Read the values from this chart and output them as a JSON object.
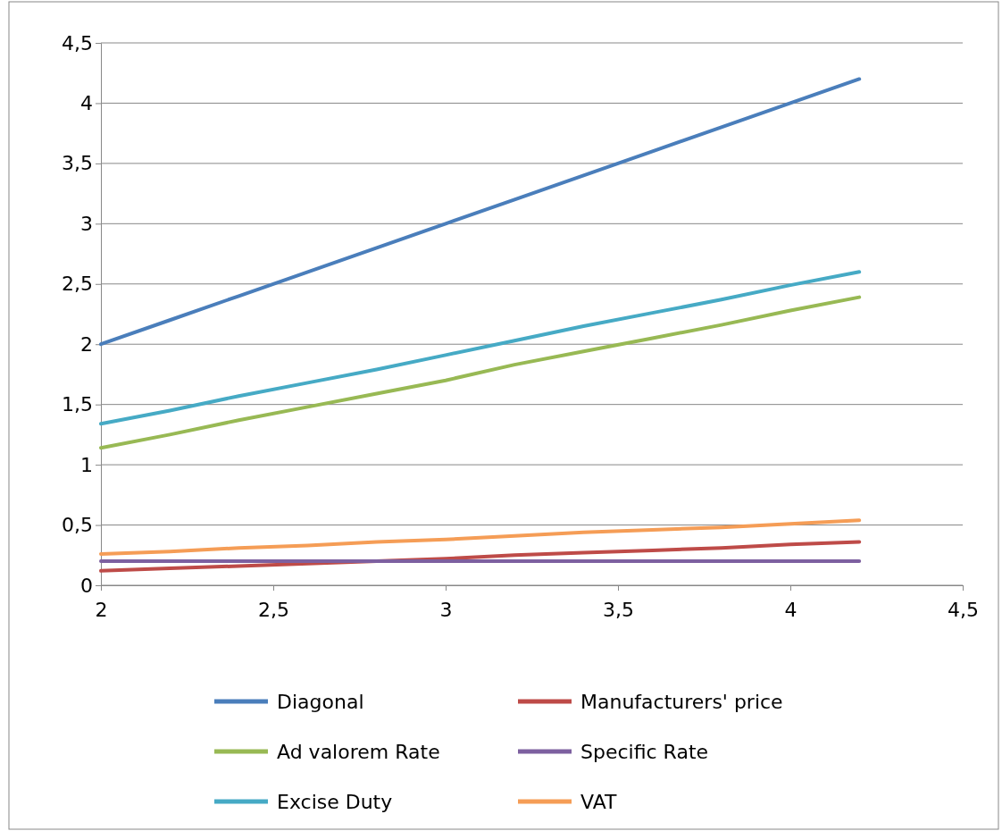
{
  "chart_data": {
    "type": "line",
    "x": [
      2,
      2.2,
      2.4,
      2.6,
      2.8,
      3,
      3.2,
      3.4,
      3.6,
      3.8,
      4,
      4.2
    ],
    "series": [
      {
        "name": "Diagonal",
        "color": "#4a7ebb",
        "values": [
          2,
          2.2,
          2.4,
          2.6,
          2.8,
          3,
          3.2,
          3.4,
          3.6,
          3.8,
          4,
          4.2
        ]
      },
      {
        "name": "Manufacturers' price",
        "color": "#be4b48",
        "values": [
          0.12,
          0.14,
          0.16,
          0.18,
          0.2,
          0.22,
          0.25,
          0.27,
          0.29,
          0.31,
          0.34,
          0.36
        ]
      },
      {
        "name": "Ad valorem Rate",
        "color": "#98b954",
        "values": [
          1.14,
          1.25,
          1.37,
          1.48,
          1.59,
          1.7,
          1.83,
          1.94,
          2.05,
          2.16,
          2.28,
          2.39
        ]
      },
      {
        "name": "Specific Rate",
        "color": "#7d60a0",
        "values": [
          0.2,
          0.2,
          0.2,
          0.2,
          0.2,
          0.2,
          0.2,
          0.2,
          0.2,
          0.2,
          0.2,
          0.2
        ]
      },
      {
        "name": "Excise Duty",
        "color": "#46aac5",
        "values": [
          1.34,
          1.45,
          1.57,
          1.68,
          1.79,
          1.91,
          2.03,
          2.15,
          2.26,
          2.37,
          2.49,
          2.6
        ]
      },
      {
        "name": "VAT",
        "color": "#f59d56",
        "values": [
          0.26,
          0.28,
          0.31,
          0.33,
          0.36,
          0.38,
          0.41,
          0.44,
          0.46,
          0.48,
          0.51,
          0.54
        ]
      }
    ],
    "xlim": [
      2,
      4.5
    ],
    "xticks": [
      {
        "value": 2,
        "label": "2"
      },
      {
        "value": 2.5,
        "label": "2,5"
      },
      {
        "value": 3,
        "label": "3"
      },
      {
        "value": 3.5,
        "label": "3,5"
      },
      {
        "value": 4,
        "label": "4"
      },
      {
        "value": 4.5,
        "label": "4,5"
      }
    ],
    "ylim": [
      0,
      4.5
    ],
    "yticks": [
      {
        "value": 0,
        "label": "0"
      },
      {
        "value": 0.5,
        "label": "0,5"
      },
      {
        "value": 1,
        "label": "1"
      },
      {
        "value": 1.5,
        "label": "1,5"
      },
      {
        "value": 2,
        "label": "2"
      },
      {
        "value": 2.5,
        "label": "2,5"
      },
      {
        "value": 3,
        "label": "3"
      },
      {
        "value": 3.5,
        "label": "3,5"
      },
      {
        "value": 4,
        "label": "4"
      },
      {
        "value": 4.5,
        "label": "4,5"
      }
    ],
    "grid": "y",
    "legend": "bottom",
    "marker": "none",
    "line_style": "solid"
  }
}
